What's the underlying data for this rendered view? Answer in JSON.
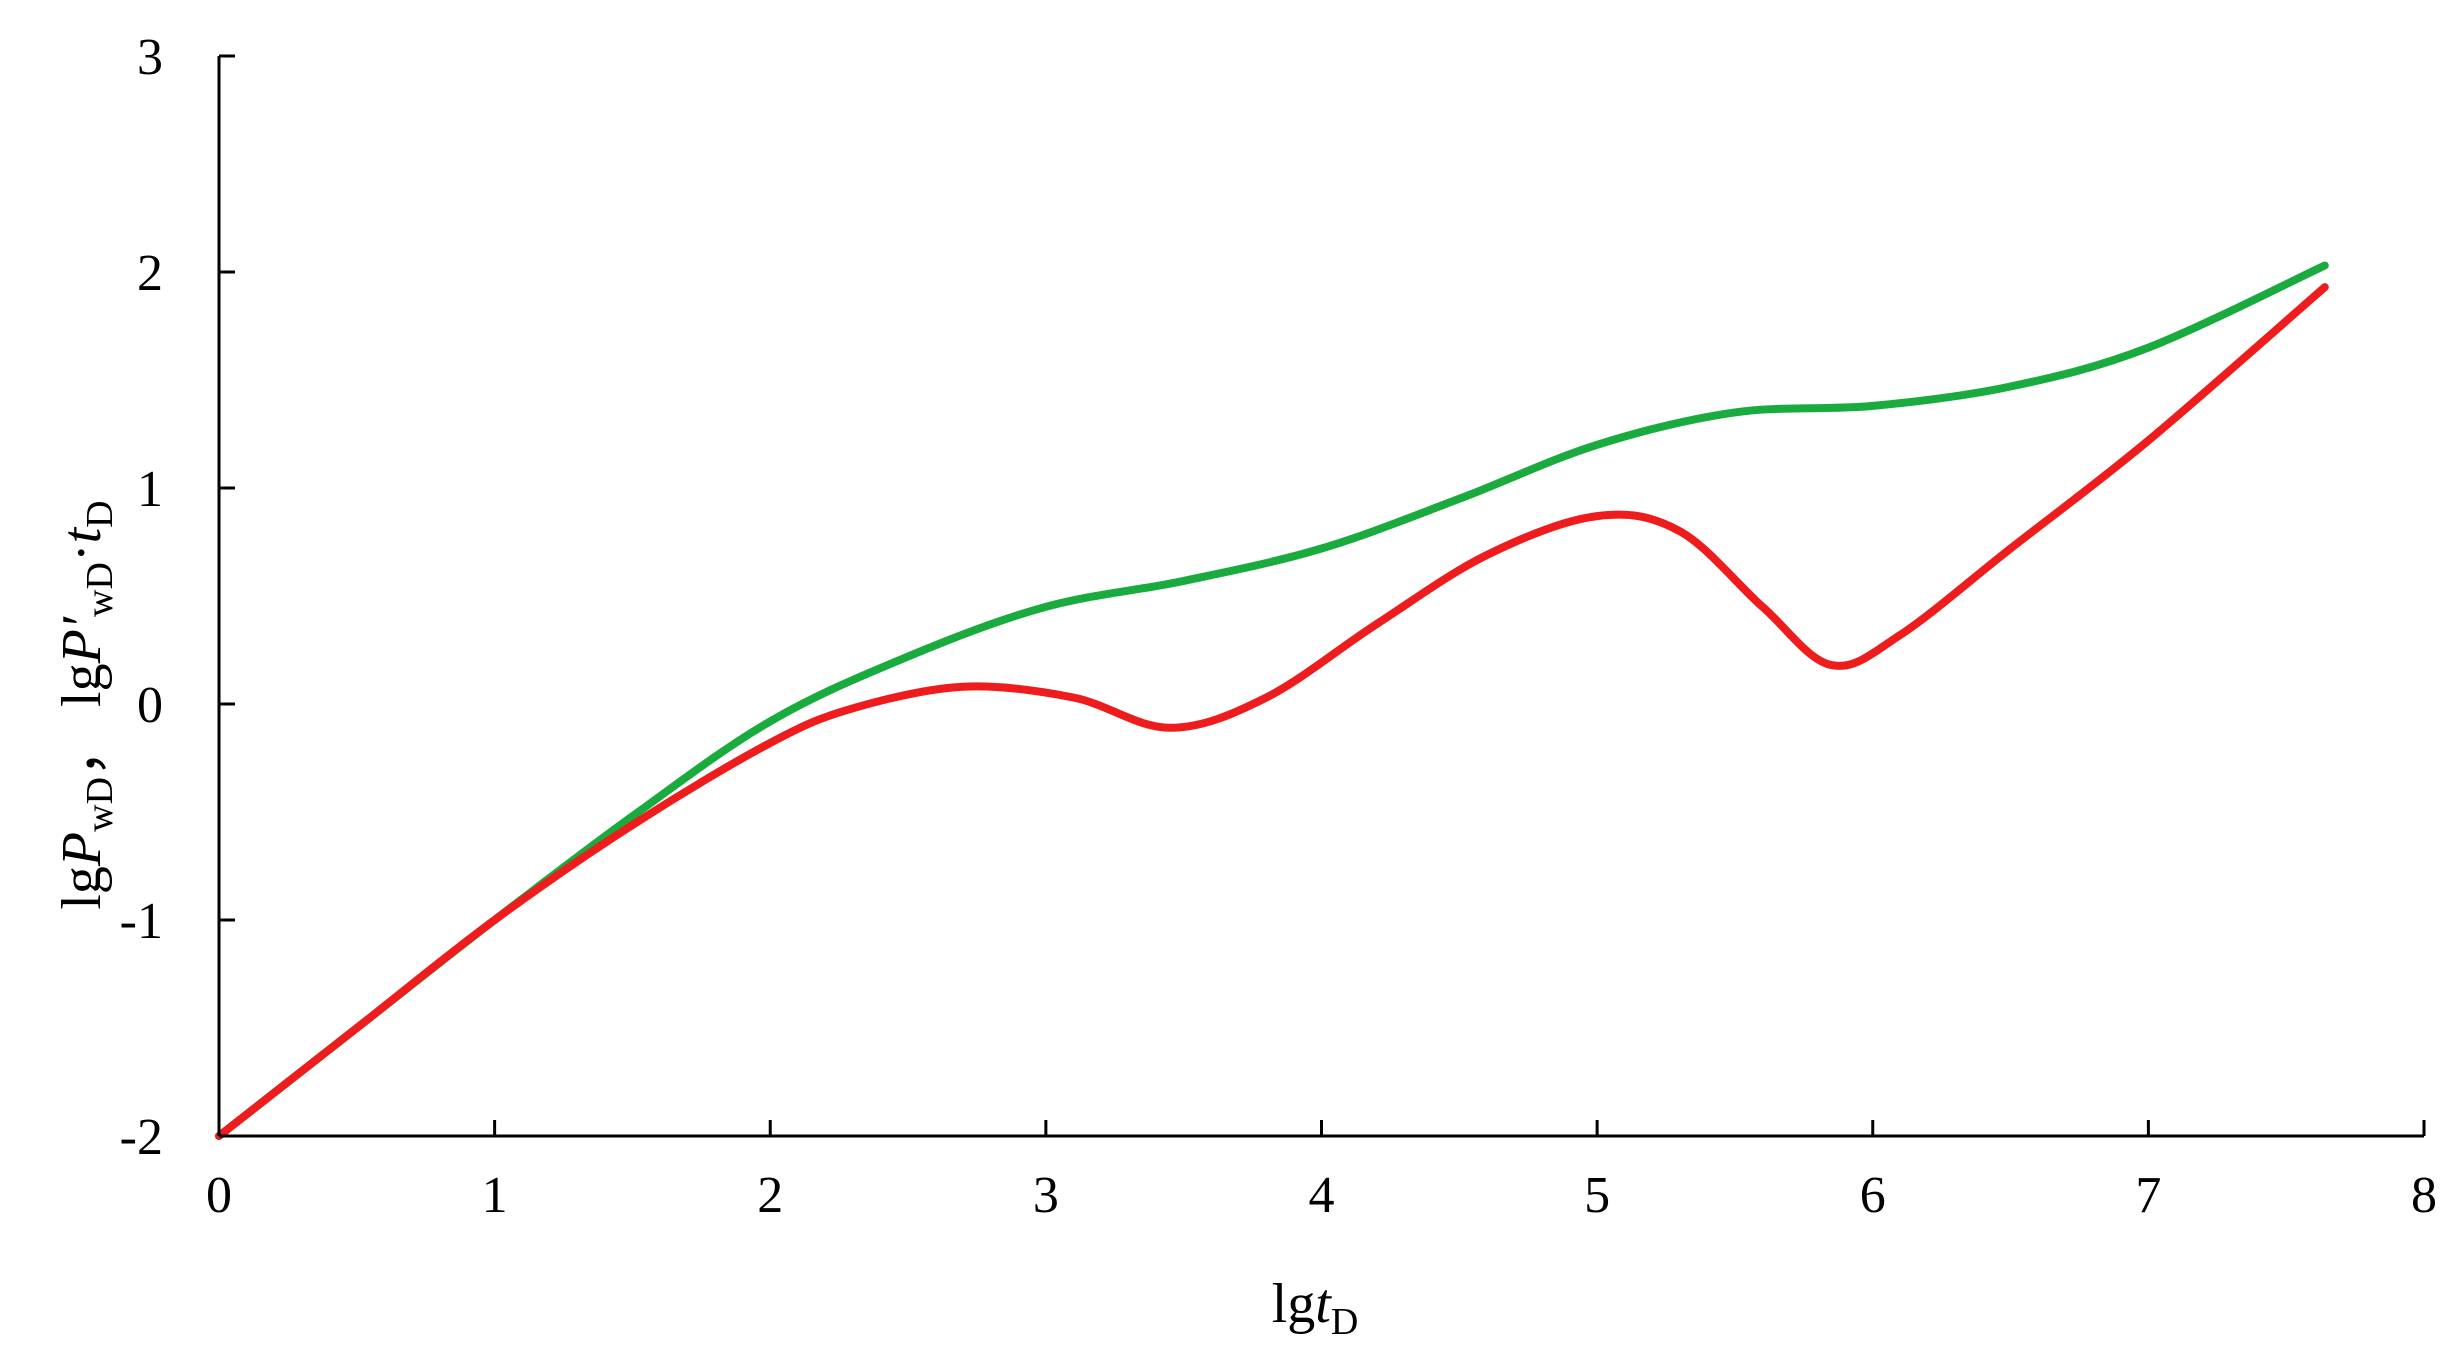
{
  "chart_data": {
    "type": "line",
    "xlabel": {
      "prefix": "lg",
      "var": "t",
      "sub": "D"
    },
    "ylabel": {
      "part1_prefix": "lg",
      "part1_var": "P",
      "part1_sub": "wD",
      "separator": "， ",
      "part2_prefix": "lg",
      "part2_var": "P′",
      "part2_sub": "wD",
      "part2_dot": "·",
      "part2_var2": "t",
      "part2_sub2": "D"
    },
    "xlim": [
      0,
      8
    ],
    "ylim": [
      -2,
      3
    ],
    "x_ticks": [
      0,
      1,
      2,
      3,
      4,
      5,
      6,
      7,
      8
    ],
    "y_ticks": [
      -2,
      -1,
      0,
      1,
      2,
      3
    ],
    "x_tick_labels": [
      "0",
      "1",
      "2",
      "3",
      "4",
      "5",
      "6",
      "7",
      "8"
    ],
    "y_tick_labels": [
      "-2",
      "-1",
      "0",
      "1",
      "2",
      "3"
    ],
    "grid": false,
    "series": [
      {
        "color": "#1aab3e",
        "x": [
          0,
          0.5,
          1.0,
          1.5,
          2.0,
          2.5,
          3.0,
          3.5,
          4.0,
          4.5,
          5.0,
          5.5,
          6.0,
          6.5,
          7.0,
          7.64
        ],
        "y": [
          -2.0,
          -1.5,
          -1.0,
          -0.52,
          -0.08,
          0.22,
          0.45,
          0.57,
          0.72,
          0.95,
          1.2,
          1.35,
          1.38,
          1.47,
          1.65,
          2.03
        ]
      },
      {
        "color": "#ee1c1c",
        "x": [
          0,
          0.5,
          1.0,
          1.5,
          2.0,
          2.3,
          2.7,
          3.1,
          3.45,
          3.8,
          4.2,
          4.6,
          5.0,
          5.3,
          5.6,
          5.85,
          6.1,
          6.5,
          7.0,
          7.64
        ],
        "y": [
          -2.0,
          -1.5,
          -1.0,
          -0.56,
          -0.18,
          -0.02,
          0.08,
          0.03,
          -0.11,
          0.03,
          0.37,
          0.69,
          0.87,
          0.8,
          0.45,
          0.18,
          0.32,
          0.72,
          1.22,
          1.93
        ]
      }
    ]
  }
}
